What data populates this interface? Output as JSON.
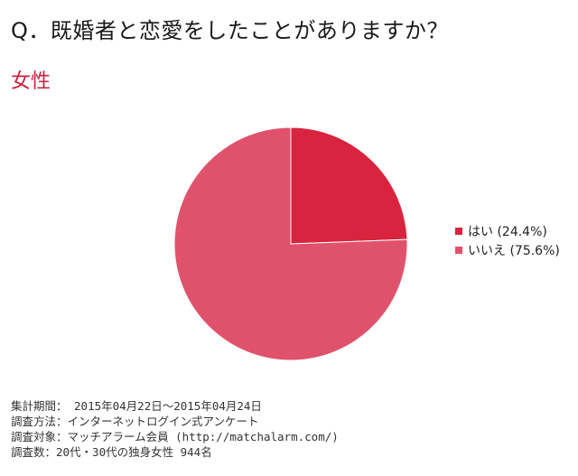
{
  "header": {
    "question": "Q．既婚者と恋愛をしたことがありますか？",
    "subtitle": "女性"
  },
  "chart_data": {
    "type": "pie",
    "title": "女性",
    "slices": [
      {
        "label": "はい",
        "value": 24.4,
        "legend": "はい (24.4%)",
        "color": "#d9243f"
      },
      {
        "label": "いいえ",
        "value": 75.6,
        "legend": "いいえ (75.6%)",
        "color": "#e0526b"
      }
    ],
    "legend_position": "right"
  },
  "footer": {
    "period": "集計期間： 2015年04月22日～2015年04月24日",
    "method": "調査方法：インターネットログイン式アンケート",
    "target": "調査対象：マッチアラーム会員 (http://matchalarm.com/)",
    "count": "調査数：20代・30代の独身女性 944名"
  }
}
